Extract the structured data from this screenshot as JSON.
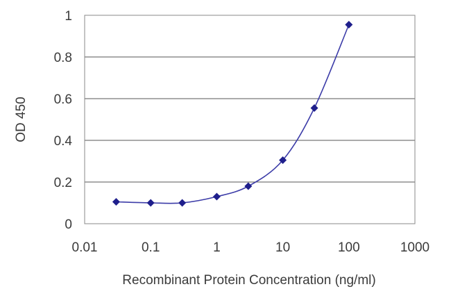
{
  "chart_data": {
    "type": "line",
    "title": "",
    "xlabel": "Recombinant Protein Concentration (ng/ml)",
    "ylabel": "OD 450",
    "x_scale": "log",
    "xlim": [
      0.01,
      1000
    ],
    "ylim": [
      0,
      1
    ],
    "x_ticks": [
      "0.01",
      "0.1",
      "1",
      "10",
      "100",
      "1000"
    ],
    "y_ticks": [
      "0",
      "0.2",
      "0.4",
      "0.6",
      "0.8",
      "1"
    ],
    "grid": "horizontal",
    "legend": "none",
    "series": [
      {
        "x": [
          0.03,
          0.1,
          0.3,
          1,
          3,
          10,
          30,
          100
        ],
        "y": [
          0.105,
          0.1,
          0.1,
          0.13,
          0.18,
          0.305,
          0.555,
          0.955
        ]
      }
    ],
    "colors": {
      "line": "#3c3ca8",
      "marker": "#1f1f8c",
      "grid": "#555555",
      "axis": "#888888",
      "text": "#3a3a3a"
    }
  }
}
